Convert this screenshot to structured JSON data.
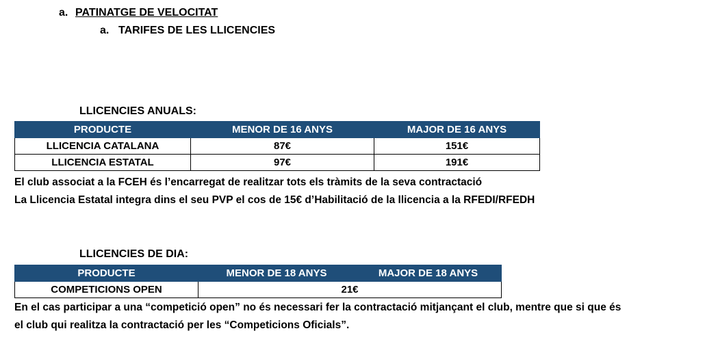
{
  "heading_a": {
    "marker": "a.",
    "title": "PATINATGE DE VELOCITAT"
  },
  "heading_b": {
    "marker": "a.",
    "title": "TARIFES DE LES LLICENCIES"
  },
  "annual": {
    "label": "LLICENCIES ANUALS:",
    "headers": [
      "PRODUCTE",
      "MENOR DE 16 ANYS",
      "MAJOR DE 16 ANYS"
    ],
    "rows": [
      [
        "LLICENCIA CATALANA",
        "87€",
        "151€"
      ],
      [
        "LLICENCIA ESTATAL",
        "97€",
        "191€"
      ]
    ],
    "notes": [
      "El club associat a la FCEH és l’encarregat de realitzar tots els tràmits de la seva contractació",
      "La Llicencia Estatal integra dins el seu PVP el cos de 15€ d’Habilitació de la llicencia a la RFEDI/RFEDH"
    ]
  },
  "day": {
    "label": "LLICENCIES DE DIA:",
    "headers": [
      "PRODUCTE",
      "MENOR DE 18 ANYS",
      "MAJOR DE 18 ANYS"
    ],
    "rows": [
      [
        "COMPETICIONS OPEN",
        "21€"
      ]
    ],
    "notes": [
      "En el cas participar a una “competició open” no és necessari fer la contractació mitjançant el club, mentre que si que és",
      "el club qui realitza la contractació per les “Competicions Oficials”."
    ]
  }
}
